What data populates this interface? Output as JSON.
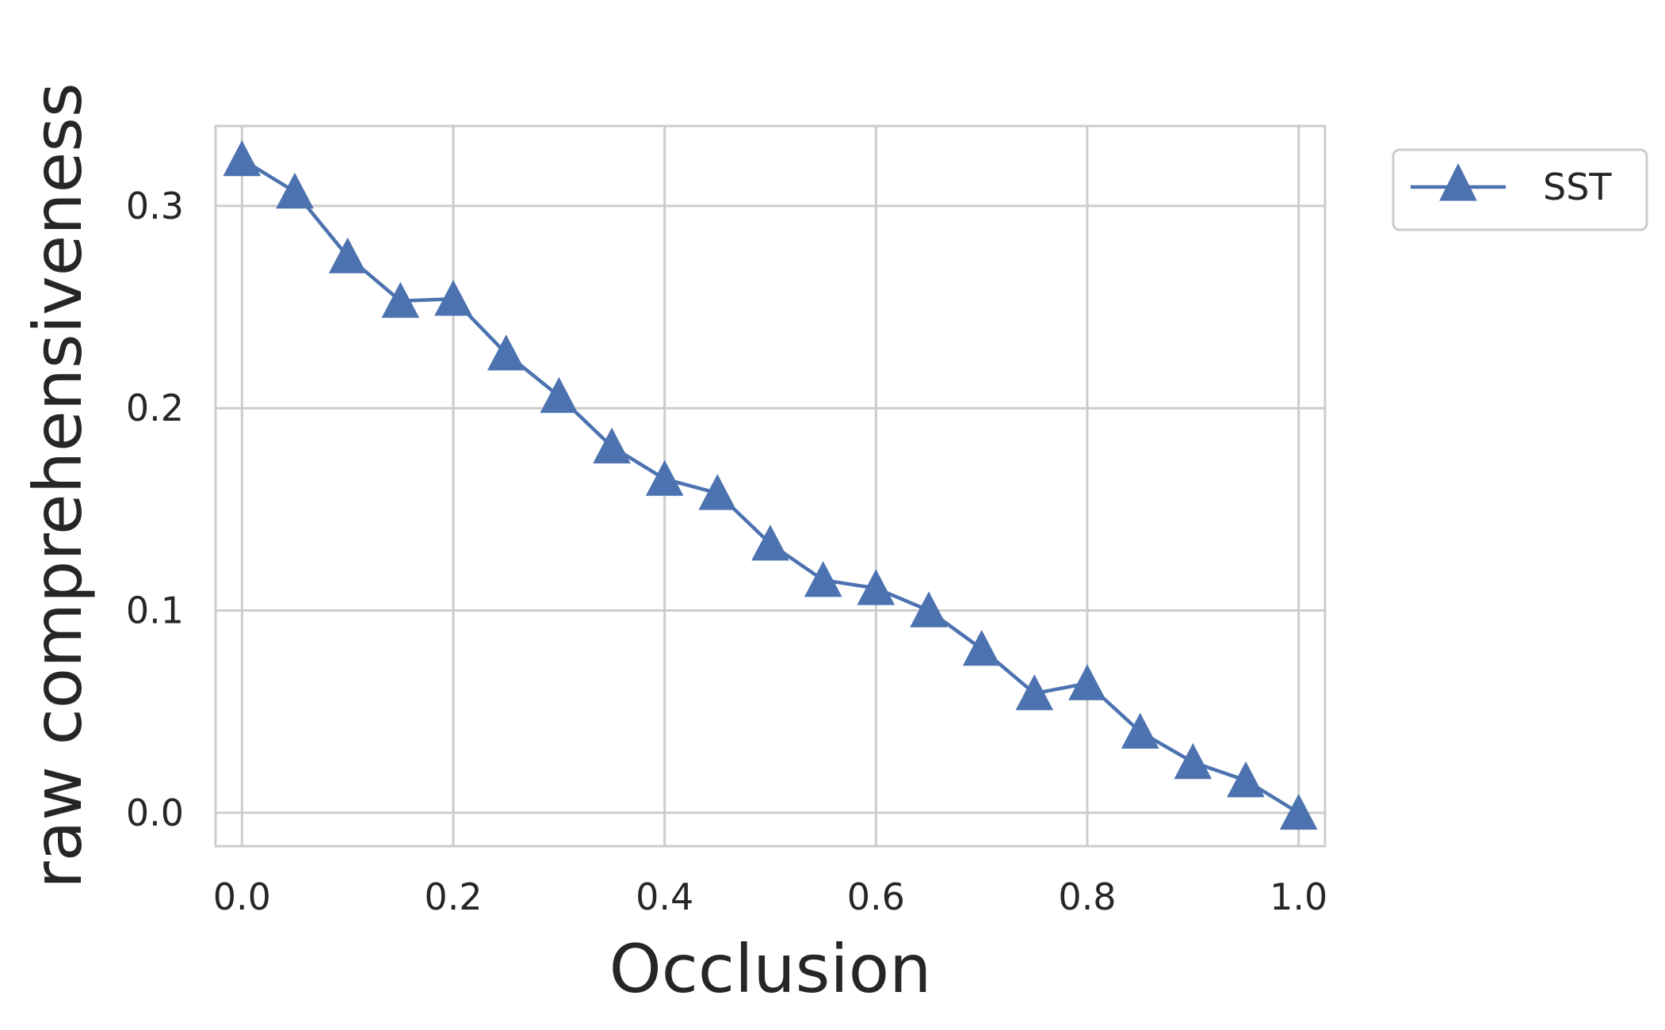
{
  "chart_data": {
    "type": "line",
    "xlabel": "Occlusion",
    "ylabel": "raw comprehensiveness",
    "xlim": [
      -0.025,
      1.025
    ],
    "ylim": [
      -0.0165,
      0.3395
    ],
    "xticks": [
      0.0,
      0.2,
      0.4,
      0.6,
      0.8,
      1.0
    ],
    "xtick_labels": [
      "0.0",
      "0.2",
      "0.4",
      "0.6",
      "0.8",
      "1.0"
    ],
    "yticks": [
      0.0,
      0.1,
      0.2,
      0.3
    ],
    "ytick_labels": [
      "0.0",
      "0.1",
      "0.2",
      "0.3"
    ],
    "grid": true,
    "legend_position": "outside-right-top",
    "series": [
      {
        "name": "SST",
        "color": "#4c72b0",
        "marker": "triangle-up",
        "x": [
          0.0,
          0.05,
          0.1,
          0.15,
          0.2,
          0.25,
          0.3,
          0.35,
          0.4,
          0.45,
          0.5,
          0.55,
          0.6,
          0.65,
          0.7,
          0.75,
          0.8,
          0.85,
          0.9,
          0.95,
          1.0
        ],
        "y": [
          0.323,
          0.307,
          0.275,
          0.253,
          0.254,
          0.227,
          0.206,
          0.181,
          0.165,
          0.158,
          0.133,
          0.115,
          0.111,
          0.1,
          0.081,
          0.059,
          0.064,
          0.04,
          0.025,
          0.016,
          0.0
        ]
      }
    ]
  }
}
